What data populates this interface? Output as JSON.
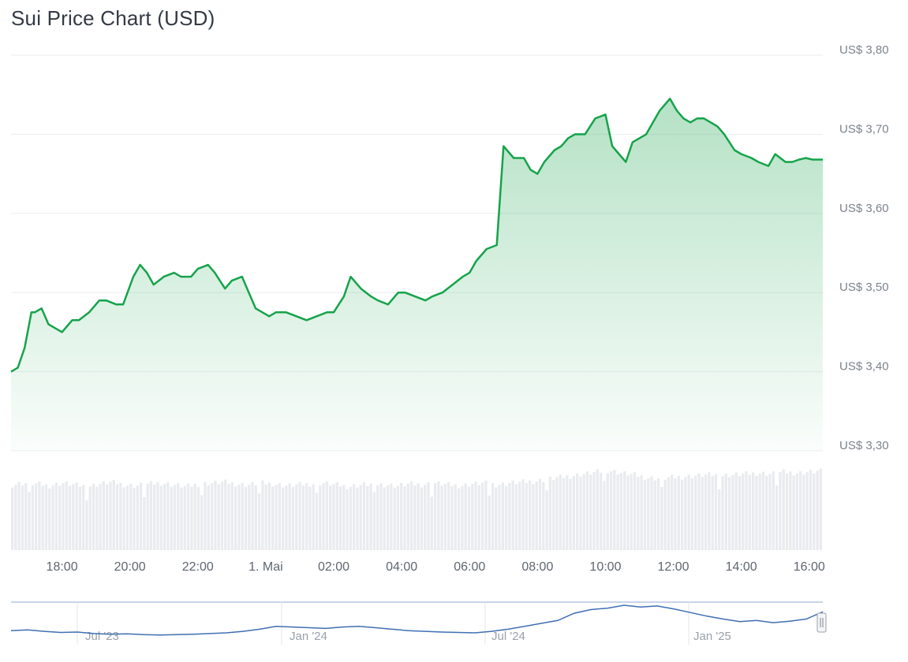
{
  "title": "Sui Price Chart (USD)",
  "colors": {
    "line": "#16a34a",
    "area_top": "#16a34a",
    "volume": "#e9ebee",
    "grid": "#eceef1",
    "navigator_line": "#3f6fb3",
    "navigator_border": "#b7c6e0"
  },
  "chart_data": {
    "type": "area",
    "title": "Sui Price Chart (USD)",
    "y_tick_labels": [
      "US$ 3,80",
      "US$ 3,70",
      "US$ 3,60",
      "US$ 3,50",
      "US$ 3,40",
      "US$ 3,30"
    ],
    "y_ticks": [
      3.8,
      3.7,
      3.6,
      3.5,
      3.4,
      3.3
    ],
    "ylim": [
      3.3,
      3.8
    ],
    "x_tick_labels": [
      "18:00",
      "20:00",
      "22:00",
      "1. Mai",
      "02:00",
      "04:00",
      "06:00",
      "08:00",
      "10:00",
      "12:00",
      "14:00",
      "16:00"
    ],
    "x_ticks": [
      18,
      20,
      22,
      24,
      26,
      28,
      30,
      32,
      34,
      36,
      38,
      40
    ],
    "xlim": [
      16.5,
      40.4
    ],
    "grid": true,
    "series": [
      {
        "x": [
          16.5,
          16.7,
          16.9,
          17.1,
          17.2,
          17.4,
          17.6,
          17.8,
          18.0,
          18.3,
          18.5,
          18.8,
          19.1,
          19.3,
          19.6,
          19.8,
          20.1,
          20.3,
          20.5,
          20.7,
          21.0,
          21.3,
          21.5,
          21.8,
          22.0,
          22.3,
          22.5,
          22.8,
          23.0,
          23.3,
          23.5,
          23.7,
          23.9,
          24.1,
          24.3,
          24.6,
          24.9,
          25.2,
          25.5,
          25.8,
          26.0,
          26.3,
          26.5,
          26.8,
          27.1,
          27.3,
          27.6,
          27.9,
          28.1,
          28.4,
          28.7,
          28.9,
          29.2,
          29.5,
          29.8,
          30.0,
          30.2,
          30.5,
          30.8,
          31.0,
          31.3,
          31.6,
          31.8,
          32.0,
          32.2,
          32.5,
          32.7,
          32.9,
          33.1,
          33.4,
          33.7,
          34.0,
          34.2,
          34.4,
          34.6,
          34.8,
          35.0,
          35.2,
          35.4,
          35.6,
          35.9,
          36.1,
          36.3,
          36.5,
          36.7,
          36.9,
          37.1,
          37.3,
          37.5,
          37.8,
          38.0,
          38.3,
          38.5,
          38.8,
          39.0,
          39.3,
          39.5,
          39.7,
          39.9,
          40.1,
          40.4
        ],
        "values": [
          3.4,
          3.405,
          3.43,
          3.475,
          3.475,
          3.48,
          3.46,
          3.455,
          3.45,
          3.465,
          3.465,
          3.475,
          3.49,
          3.49,
          3.485,
          3.485,
          3.52,
          3.535,
          3.525,
          3.51,
          3.52,
          3.525,
          3.52,
          3.52,
          3.53,
          3.535,
          3.525,
          3.505,
          3.515,
          3.52,
          3.5,
          3.48,
          3.475,
          3.47,
          3.475,
          3.475,
          3.47,
          3.465,
          3.47,
          3.475,
          3.475,
          3.495,
          3.52,
          3.505,
          3.495,
          3.49,
          3.485,
          3.5,
          3.5,
          3.495,
          3.49,
          3.495,
          3.5,
          3.51,
          3.52,
          3.525,
          3.54,
          3.555,
          3.56,
          3.685,
          3.67,
          3.67,
          3.655,
          3.65,
          3.665,
          3.68,
          3.685,
          3.695,
          3.7,
          3.7,
          3.72,
          3.725,
          3.685,
          3.675,
          3.665,
          3.69,
          3.695,
          3.7,
          3.715,
          3.73,
          3.745,
          3.73,
          3.72,
          3.715,
          3.72,
          3.72,
          3.715,
          3.71,
          3.7,
          3.68,
          3.675,
          3.67,
          3.665,
          3.66,
          3.675,
          3.665,
          3.665,
          3.668,
          3.67,
          3.668,
          3.668
        ]
      }
    ],
    "volume": {
      "relative_values": [
        0.72,
        0.74,
        0.73,
        0.71,
        0.74,
        0.72,
        0.7,
        0.73,
        0.75,
        0.72,
        0.71,
        0.73,
        0.74,
        0.72,
        0.7,
        0.73,
        0.74,
        0.75,
        0.73,
        0.72,
        0.74,
        0.73,
        0.71,
        0.72,
        0.73,
        0.74,
        0.72,
        0.7,
        0.72,
        0.73,
        0.72,
        0.71,
        0.73,
        0.72,
        0.74,
        0.72,
        0.71,
        0.73,
        0.74,
        0.72,
        0.74,
        0.75,
        0.76,
        0.78,
        0.8,
        0.82,
        0.84,
        0.86,
        0.88,
        0.85,
        0.83,
        0.8,
        0.79,
        0.8,
        0.81,
        0.82,
        0.83,
        0.82,
        0.83,
        0.84,
        0.85,
        0.84,
        0.86,
        0.85,
        0.86,
        0.87
      ]
    },
    "navigator": {
      "x_tick_labels": [
        "Jul '23",
        "Jan '24",
        "Jul '24",
        "Jan '25"
      ],
      "relative_values": [
        0.3,
        0.32,
        0.28,
        0.25,
        0.26,
        0.22,
        0.2,
        0.21,
        0.19,
        0.18,
        0.19,
        0.2,
        0.22,
        0.24,
        0.28,
        0.34,
        0.42,
        0.4,
        0.38,
        0.36,
        0.4,
        0.42,
        0.38,
        0.34,
        0.3,
        0.28,
        0.26,
        0.25,
        0.24,
        0.28,
        0.34,
        0.42,
        0.5,
        0.58,
        0.78,
        0.88,
        0.92,
        1.0,
        0.95,
        0.98,
        0.9,
        0.8,
        0.7,
        0.62,
        0.55,
        0.58,
        0.52,
        0.56,
        0.62,
        0.82
      ]
    }
  }
}
